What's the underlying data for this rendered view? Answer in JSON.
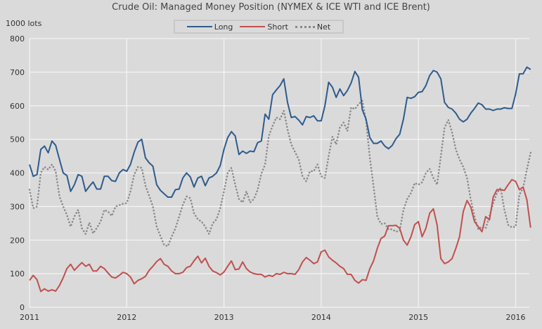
{
  "chart_data": {
    "type": "line",
    "title": "Crude Oil: Managed Money Position (NYMEX & ICE WTI and ICE Brent)",
    "ylabel": "1000 lots",
    "xlabel": "",
    "ylim": [
      0,
      800
    ],
    "xlim": [
      2011.0,
      2016.15
    ],
    "yticks": [
      "0",
      "100",
      "200",
      "300",
      "400",
      "500",
      "600",
      "700",
      "800"
    ],
    "xticks": [
      "2011",
      "2012",
      "2013",
      "2014",
      "2015",
      "2016"
    ],
    "grid": true,
    "legend_position": "top-center",
    "x_start_year": 2011.0,
    "points_per_year": 26,
    "series": [
      {
        "name": "Long",
        "color": "#2d5b8e",
        "style": "solid",
        "values": [
          425,
          390,
          395,
          470,
          480,
          460,
          495,
          482,
          440,
          400,
          392,
          345,
          365,
          395,
          390,
          345,
          360,
          373,
          352,
          352,
          390,
          390,
          377,
          375,
          400,
          410,
          405,
          425,
          462,
          492,
          500,
          445,
          430,
          420,
          365,
          348,
          338,
          328,
          328,
          350,
          352,
          385,
          400,
          388,
          358,
          385,
          390,
          362,
          385,
          390,
          400,
          422,
          470,
          505,
          523,
          510,
          455,
          465,
          458,
          465,
          463,
          490,
          495,
          575,
          560,
          633,
          647,
          660,
          680,
          610,
          565,
          568,
          557,
          543,
          568,
          565,
          570,
          555,
          555,
          600,
          670,
          655,
          625,
          650,
          630,
          645,
          668,
          702,
          685,
          588,
          560,
          505,
          488,
          488,
          495,
          480,
          472,
          482,
          502,
          515,
          560,
          625,
          622,
          627,
          640,
          642,
          660,
          690,
          705,
          700,
          680,
          610,
          595,
          590,
          578,
          560,
          552,
          560,
          578,
          592,
          608,
          603,
          590,
          590,
          586,
          590,
          590,
          594,
          592,
          592,
          635,
          695,
          695,
          715,
          708
        ]
      },
      {
        "name": "Short",
        "color": "#c0504d",
        "style": "solid",
        "values": [
          80,
          95,
          82,
          47,
          55,
          48,
          52,
          48,
          65,
          88,
          115,
          128,
          110,
          122,
          133,
          122,
          128,
          108,
          108,
          122,
          115,
          102,
          90,
          87,
          95,
          104,
          100,
          90,
          70,
          80,
          85,
          92,
          110,
          122,
          136,
          145,
          128,
          122,
          108,
          100,
          100,
          104,
          118,
          122,
          138,
          152,
          132,
          146,
          122,
          108,
          103,
          96,
          105,
          122,
          138,
          112,
          114,
          135,
          115,
          105,
          100,
          98,
          98,
          90,
          95,
          92,
          100,
          98,
          104,
          100,
          100,
          98,
          112,
          135,
          148,
          140,
          130,
          135,
          165,
          170,
          150,
          140,
          132,
          122,
          115,
          98,
          98,
          80,
          72,
          82,
          80,
          115,
          138,
          175,
          205,
          212,
          243,
          243,
          244,
          235,
          200,
          185,
          210,
          246,
          255,
          210,
          235,
          280,
          293,
          245,
          145,
          130,
          135,
          145,
          175,
          210,
          285,
          318,
          298,
          255,
          240,
          225,
          270,
          260,
          328,
          350,
          350,
          348,
          365,
          380,
          375,
          350,
          358,
          320,
          237
        ]
      },
      {
        "name": "Net",
        "color": "#8a8a8a",
        "style": "dotted",
        "values": [
          350,
          295,
          300,
          400,
          418,
          410,
          425,
          405,
          330,
          300,
          275,
          240,
          270,
          290,
          235,
          218,
          252,
          220,
          236,
          255,
          290,
          285,
          272,
          300,
          304,
          308,
          310,
          345,
          395,
          418,
          415,
          362,
          332,
          300,
          240,
          212,
          185,
          182,
          210,
          235,
          270,
          305,
          330,
          325,
          280,
          262,
          255,
          240,
          218,
          250,
          262,
          295,
          345,
          400,
          415,
          365,
          322,
          312,
          345,
          312,
          322,
          350,
          398,
          425,
          510,
          540,
          565,
          560,
          585,
          530,
          485,
          462,
          440,
          390,
          375,
          405,
          405,
          425,
          390,
          385,
          450,
          508,
          485,
          535,
          550,
          525,
          595,
          590,
          605,
          615,
          555,
          445,
          360,
          270,
          248,
          250,
          232,
          232,
          225,
          228,
          290,
          322,
          340,
          370,
          365,
          372,
          400,
          412,
          385,
          365,
          450,
          535,
          558,
          520,
          470,
          440,
          418,
          385,
          320,
          270,
          232,
          240,
          235,
          272,
          310,
          340,
          355,
          290,
          245,
          238,
          240,
          335,
          355,
          410,
          460
        ]
      }
    ]
  }
}
